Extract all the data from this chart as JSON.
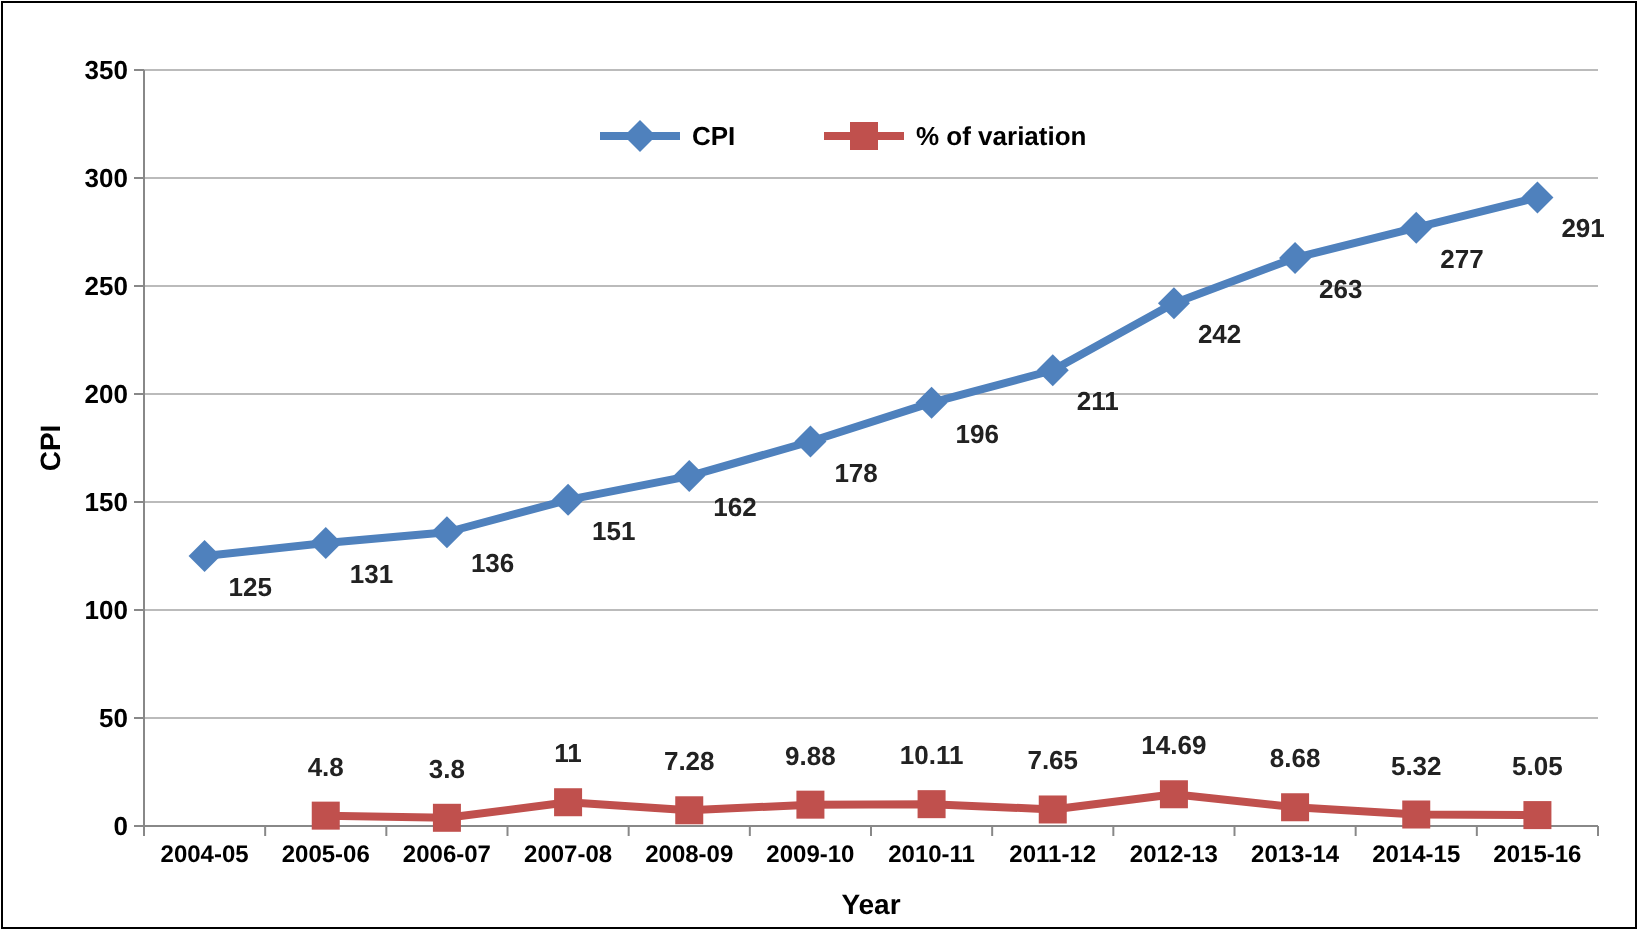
{
  "chart_data": {
    "type": "line",
    "xlabel": "Year",
    "ylabel": "CPI",
    "categories": [
      "2004-05",
      "2005-06",
      "2006-07",
      "2007-08",
      "2008-09",
      "2009-10",
      "2010-11",
      "2011-12",
      "2012-13",
      "2013-14",
      "2014-15",
      "2015-16"
    ],
    "series": [
      {
        "name": "CPI",
        "color": "#4f81bd",
        "marker": "diamond",
        "values": [
          125,
          131,
          136,
          151,
          162,
          178,
          196,
          211,
          242,
          263,
          277,
          291
        ]
      },
      {
        "name": "% of variation",
        "color": "#c0504d",
        "marker": "square",
        "values": [
          null,
          4.8,
          3.8,
          11,
          7.28,
          9.88,
          10.11,
          7.65,
          14.69,
          8.68,
          5.32,
          5.05
        ]
      }
    ],
    "ylim": [
      0,
      350
    ],
    "yticks": [
      0,
      50,
      100,
      150,
      200,
      250,
      300,
      350
    ],
    "grid": "y",
    "legend": "top",
    "data_labels": true,
    "line_style": "solid"
  }
}
